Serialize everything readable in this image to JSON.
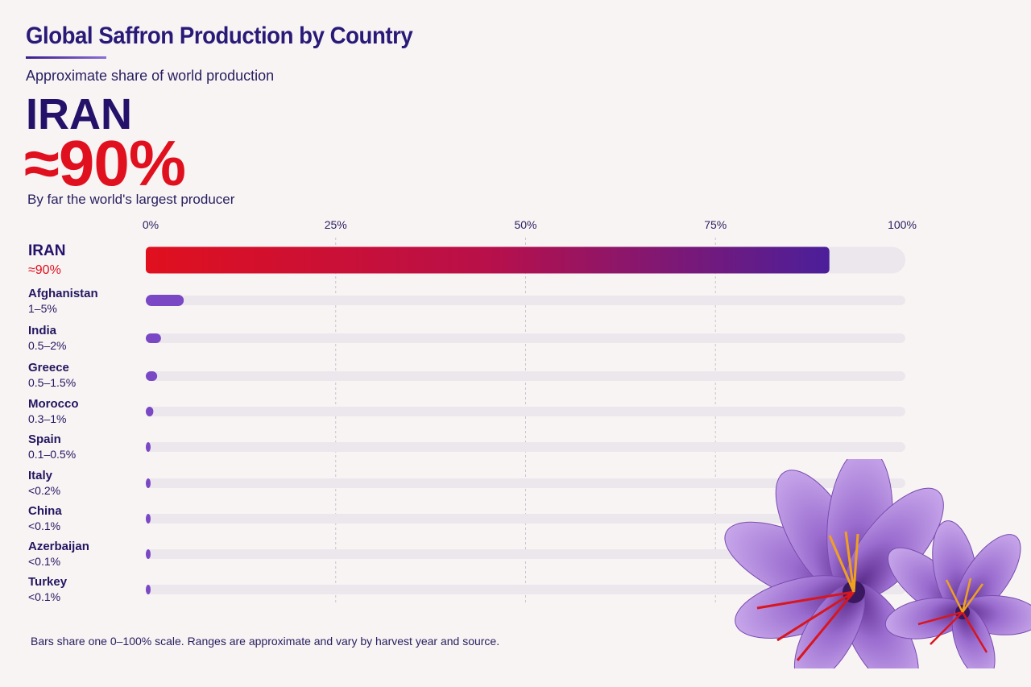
{
  "header": {
    "title": "Global Saffron Production by Country",
    "subtitle": "Approximate share of world production"
  },
  "highlight": {
    "country": "IRAN",
    "value": "≈90%",
    "note": "By far the world's largest producer"
  },
  "footnote": "Bars share one 0–100% scale. Ranges are approximate and vary by harvest year and source.",
  "colors": {
    "primary_red": "#e0101e",
    "primary_purple": "#4b1f9a",
    "bar_purple": "#7a48c4",
    "track": "#ece7ec",
    "text_dark": "#231660"
  },
  "chart_data": {
    "type": "bar",
    "orientation": "horizontal",
    "title": "Global Saffron Production by Country",
    "subtitle": "Approximate share of world production",
    "xlim": [
      0,
      100
    ],
    "x_ticks": [
      "0%",
      "25%",
      "50%",
      "75%",
      "100%"
    ],
    "x_tick_values": [
      0,
      25,
      50,
      75,
      100
    ],
    "grid": true,
    "categories": [
      "IRAN",
      "Afghanistan",
      "India",
      "Greece",
      "Morocco",
      "Spain",
      "Italy",
      "China",
      "Azerbaijan",
      "Turkey"
    ],
    "value_labels": [
      "≈90%",
      "1–5%",
      "0.5–2%",
      "0.5–1.5%",
      "0.3–1%",
      "0.1–0.5%",
      "<0.2%",
      "<0.1%",
      "<0.1%",
      "<0.1%"
    ],
    "values": [
      90,
      5,
      2,
      1.5,
      1,
      0.5,
      0.2,
      0.1,
      0.1,
      0.1
    ]
  },
  "decoration": {
    "image": "saffron-crocus-flowers"
  }
}
